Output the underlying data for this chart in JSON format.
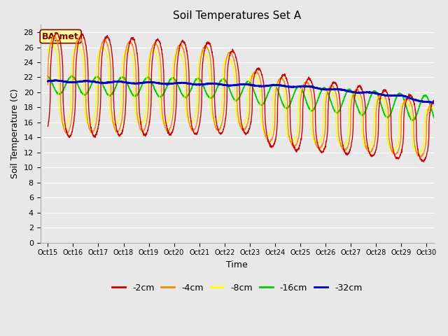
{
  "title": "Soil Temperatures Set A",
  "xlabel": "Time",
  "ylabel": "Soil Temperature (C)",
  "ylim": [
    0,
    29
  ],
  "yticks": [
    0,
    2,
    4,
    6,
    8,
    10,
    12,
    14,
    16,
    18,
    20,
    22,
    24,
    26,
    28
  ],
  "xtick_labels": [
    "Oct 15",
    "Oct 16",
    "Oct 17",
    "Oct 18",
    "Oct 19",
    "Oct 20",
    "Oct 21",
    "Oct 22",
    "Oct 23",
    "Oct 24",
    "Oct 25",
    "Oct 26",
    "Oct 27",
    "Oct 28",
    "Oct 29",
    "Oct 30"
  ],
  "series_colors": [
    "#cc0000",
    "#ff8800",
    "#ffff00",
    "#00cc00",
    "#0000cc"
  ],
  "series_labels": [
    "-2cm",
    "-4cm",
    "-8cm",
    "-16cm",
    "-32cm"
  ],
  "annotation_text": "BA_met",
  "annotation_color": "#8B0000",
  "annotation_bg": "#ffff99",
  "fig_bg": "#e8e8e8",
  "plot_bg": "#e8e8e8",
  "grid_color": "#ffffff",
  "title_fontsize": 11,
  "axis_fontsize": 9,
  "tick_fontsize": 8,
  "legend_fontsize": 9
}
